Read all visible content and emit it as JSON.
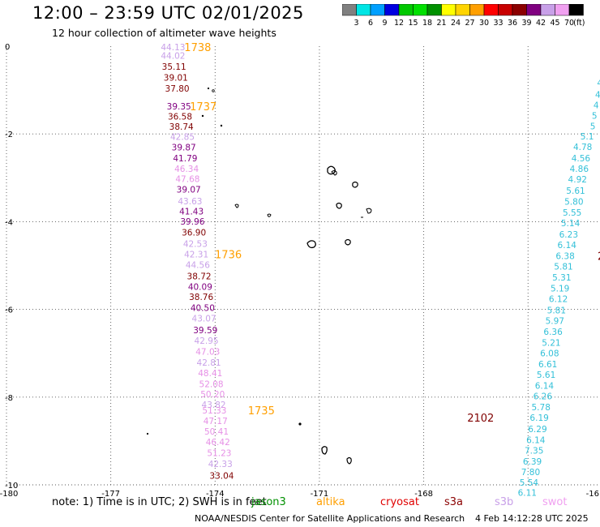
{
  "header": {
    "title": "12:00 – 23:59 UTC 02/01/2025",
    "subtitle": "12 hour collection of altimeter wave heights"
  },
  "colorbar": {
    "unit_label": "(ft)",
    "bins": [
      {
        "color": "#808080",
        "label": "3"
      },
      {
        "color": "#00e5e5",
        "label": "6"
      },
      {
        "color": "#00a0ff",
        "label": "9"
      },
      {
        "color": "#0000e0",
        "label": "12"
      },
      {
        "color": "#00c800",
        "label": "15"
      },
      {
        "color": "#00e000",
        "label": "18"
      },
      {
        "color": "#009000",
        "label": "21"
      },
      {
        "color": "#ffff00",
        "label": "24"
      },
      {
        "color": "#ffd400",
        "label": "27"
      },
      {
        "color": "#ff9f00",
        "label": "30"
      },
      {
        "color": "#ff0000",
        "label": "33"
      },
      {
        "color": "#c80000",
        "label": "36"
      },
      {
        "color": "#8b0000",
        "label": "39"
      },
      {
        "color": "#800080",
        "label": "42"
      },
      {
        "color": "#c8a0e8",
        "label": "45"
      },
      {
        "color": "#f0a0f0",
        "label": "70"
      },
      {
        "color": "#000000",
        "label": ""
      }
    ]
  },
  "axes": {
    "x_ticks": [
      "-180",
      "-177",
      "-174",
      "-171",
      "-168",
      "-16"
    ],
    "y_ticks": [
      "0",
      "-2",
      "-4",
      "-6",
      "-8",
      "-10"
    ],
    "grid": true
  },
  "track_a": {
    "color_key": {
      "dkred": "#800000",
      "purple": "#800080",
      "lav": "#c8a0e8",
      "pink": "#e690e6"
    },
    "points": [
      {
        "text": "44.13",
        "c": "lav",
        "lat": -0.02,
        "lon": -175.21
      },
      {
        "text": "44.02",
        "c": "lav",
        "lat": -0.21,
        "lon": -175.21
      },
      {
        "text": "35.11",
        "c": "dkred",
        "lat": -0.46,
        "lon": -175.18
      },
      {
        "text": "39.01",
        "c": "dkred",
        "lat": -0.71,
        "lon": -175.13
      },
      {
        "text": "37.80",
        "c": "dkred",
        "lat": -0.96,
        "lon": -175.09
      },
      {
        "text": "39.35",
        "c": "purple",
        "lat": -1.37,
        "lon": -175.04
      },
      {
        "text": "36.58",
        "c": "dkred",
        "lat": -1.6,
        "lon": -175.01
      },
      {
        "text": "38.74",
        "c": "dkred",
        "lat": -1.83,
        "lon": -174.97
      },
      {
        "text": "42.85",
        "c": "lav",
        "lat": -2.06,
        "lon": -174.94
      },
      {
        "text": "39.87",
        "c": "purple",
        "lat": -2.3,
        "lon": -174.9
      },
      {
        "text": "41.79",
        "c": "purple",
        "lat": -2.55,
        "lon": -174.86
      },
      {
        "text": "46.34",
        "c": "pink",
        "lat": -2.79,
        "lon": -174.82
      },
      {
        "text": "47.68",
        "c": "pink",
        "lat": -3.02,
        "lon": -174.79
      },
      {
        "text": "39.07",
        "c": "purple",
        "lat": -3.26,
        "lon": -174.76
      },
      {
        "text": "43.63",
        "c": "lav",
        "lat": -3.53,
        "lon": -174.72
      },
      {
        "text": "41.43",
        "c": "purple",
        "lat": -3.76,
        "lon": -174.68
      },
      {
        "text": "39.96",
        "c": "purple",
        "lat": -3.99,
        "lon": -174.65
      },
      {
        "text": "36.90",
        "c": "dkred",
        "lat": -4.24,
        "lon": -174.61
      },
      {
        "text": "42.53",
        "c": "lav",
        "lat": -4.5,
        "lon": -174.57
      },
      {
        "text": "42.31",
        "c": "lav",
        "lat": -4.74,
        "lon": -174.54
      },
      {
        "text": "44.56",
        "c": "lav",
        "lat": -4.98,
        "lon": -174.5
      },
      {
        "text": "38.72",
        "c": "dkred",
        "lat": -5.24,
        "lon": -174.46
      },
      {
        "text": "40.09",
        "c": "purple",
        "lat": -5.48,
        "lon": -174.43
      },
      {
        "text": "38.76",
        "c": "dkred",
        "lat": -5.71,
        "lon": -174.4
      },
      {
        "text": "40.50",
        "c": "purple",
        "lat": -5.96,
        "lon": -174.36
      },
      {
        "text": "43.07",
        "c": "lav",
        "lat": -6.2,
        "lon": -174.32
      },
      {
        "text": "39.59",
        "c": "purple",
        "lat": -6.47,
        "lon": -174.28
      },
      {
        "text": "42.95",
        "c": "lav",
        "lat": -6.71,
        "lon": -174.25
      },
      {
        "text": "47.03",
        "c": "pink",
        "lat": -6.96,
        "lon": -174.21
      },
      {
        "text": "42.81",
        "c": "lav",
        "lat": -7.21,
        "lon": -174.18
      },
      {
        "text": "48.41",
        "c": "pink",
        "lat": -7.45,
        "lon": -174.14
      },
      {
        "text": "52.08",
        "c": "pink",
        "lat": -7.7,
        "lon": -174.11
      },
      {
        "text": "50.20",
        "c": "pink",
        "lat": -7.93,
        "lon": -174.07
      },
      {
        "text": "43.82",
        "c": "lav",
        "lat": -8.17,
        "lon": -174.04
      },
      {
        "text": "51.33",
        "c": "pink",
        "lat": -8.3,
        "lon": -174.02
      },
      {
        "text": "47.17",
        "c": "pink",
        "lat": -8.54,
        "lon": -173.99
      },
      {
        "text": "50.41",
        "c": "pink",
        "lat": -8.78,
        "lon": -173.96
      },
      {
        "text": "46.42",
        "c": "pink",
        "lat": -9.02,
        "lon": -173.92
      },
      {
        "text": "51.23",
        "c": "pink",
        "lat": -9.27,
        "lon": -173.88
      },
      {
        "text": "42.33",
        "c": "lav",
        "lat": -9.52,
        "lon": -173.85
      },
      {
        "text": "33.04",
        "c": "dkred",
        "lat": -9.79,
        "lon": -173.81
      }
    ],
    "time_labels": [
      {
        "text": "1738",
        "lat": -0.02,
        "lon": -174.5
      },
      {
        "text": "1737",
        "lat": -1.37,
        "lon": -174.34
      },
      {
        "text": "1736",
        "lat": -4.74,
        "lon": -173.62
      },
      {
        "text": "1735",
        "lat": -8.3,
        "lon": -172.67
      }
    ]
  },
  "track_b": {
    "color": "#33c0d8",
    "points": [
      {
        "text": "4",
        "lat": -0.83,
        "lon": -163.95
      },
      {
        "text": "4",
        "lat": -1.1,
        "lon": -163.95
      },
      {
        "text": "4",
        "lat": -1.34,
        "lon": -163.95
      },
      {
        "text": "5",
        "lat": -1.58,
        "lon": -163.95
      },
      {
        "text": "5",
        "lat": -1.82,
        "lon": -163.95
      },
      {
        "text": "5.1",
        "lat": -2.05,
        "lon": -163.95
      },
      {
        "text": "4.78",
        "lat": -2.29,
        "lon": -163.95
      },
      {
        "text": "4.56",
        "lat": -2.55,
        "lon": -163.95
      },
      {
        "text": "4.86",
        "lat": -2.79,
        "lon": -163.95
      },
      {
        "text": "4.92",
        "lat": -3.03,
        "lon": -163.95
      },
      {
        "text": "5.61",
        "lat": -3.29,
        "lon": -163.95
      },
      {
        "text": "5.80",
        "lat": -3.54,
        "lon": -163.95
      },
      {
        "text": "5.55",
        "lat": -3.79,
        "lon": -163.95
      },
      {
        "text": "5.14",
        "lat": -4.03,
        "lon": -163.95
      },
      {
        "text": "6.23",
        "lat": -4.29,
        "lon": -163.95
      },
      {
        "text": "6.14",
        "lat": -4.53,
        "lon": -163.95
      },
      {
        "text": "6.38",
        "lat": -4.78,
        "lon": -163.95
      },
      {
        "text": "5.81",
        "lat": -5.02,
        "lon": -163.95
      },
      {
        "text": "5.31",
        "lat": -5.27,
        "lon": -163.95
      },
      {
        "text": "5.19",
        "lat": -5.52,
        "lon": -163.95
      },
      {
        "text": "6.12",
        "lat": -5.76,
        "lon": -163.95
      },
      {
        "text": "5.81",
        "lat": -6.02,
        "lon": -163.95
      },
      {
        "text": "5.97",
        "lat": -6.26,
        "lon": -163.95
      },
      {
        "text": "6.36",
        "lat": -6.51,
        "lon": -163.95
      },
      {
        "text": "5.21",
        "lat": -6.76,
        "lon": -163.95
      },
      {
        "text": "6.08",
        "lat": -7.0,
        "lon": -163.95
      },
      {
        "text": "6.61",
        "lat": -7.25,
        "lon": -163.95
      },
      {
        "text": "5.61",
        "lat": -7.49,
        "lon": -163.95
      },
      {
        "text": "6.14",
        "lat": -7.74,
        "lon": -163.95
      },
      {
        "text": "6.26",
        "lat": -7.98,
        "lon": -163.95
      },
      {
        "text": "5.78",
        "lat": -8.23,
        "lon": -163.95
      },
      {
        "text": "6.19",
        "lat": -8.47,
        "lon": -163.95
      },
      {
        "text": "6.29",
        "lat": -8.72,
        "lon": -163.95
      },
      {
        "text": "6.14",
        "lat": -8.97,
        "lon": -163.95
      },
      {
        "text": "7.35",
        "lat": -9.21,
        "lon": -163.95
      },
      {
        "text": "6.39",
        "lat": -9.46,
        "lon": -163.95
      },
      {
        "text": "7.80",
        "lat": -9.7,
        "lon": -163.95
      },
      {
        "text": "5.54",
        "lat": -9.94,
        "lon": -163.95
      },
      {
        "text": "6.11",
        "lat": -10.18,
        "lon": -163.95
      }
    ],
    "time_labels": [
      {
        "text": "2",
        "lat": -4.78,
        "lon": -163.0,
        "color": "#800000"
      },
      {
        "text": "2102",
        "lat": -8.47,
        "lon": -166.75,
        "color": "#800000"
      }
    ]
  },
  "note": "note:  1) Time is in UTC; 2) SWH is in feet",
  "satellites": [
    {
      "name": "jason3",
      "color": "#009000"
    },
    {
      "name": "altika",
      "color": "#ff9f00"
    },
    {
      "name": "cryosat",
      "color": "#e00000"
    },
    {
      "name": "s3a",
      "color": "#8b0000"
    },
    {
      "name": "s3b",
      "color": "#c8a0e8"
    },
    {
      "name": "swot",
      "color": "#f0a0f0"
    }
  ],
  "footer": {
    "credit": "NOAA/NESDIS Center for Satellite Applications and Research",
    "timestamp": "4 Feb 14:12:28 UTC 2025"
  }
}
